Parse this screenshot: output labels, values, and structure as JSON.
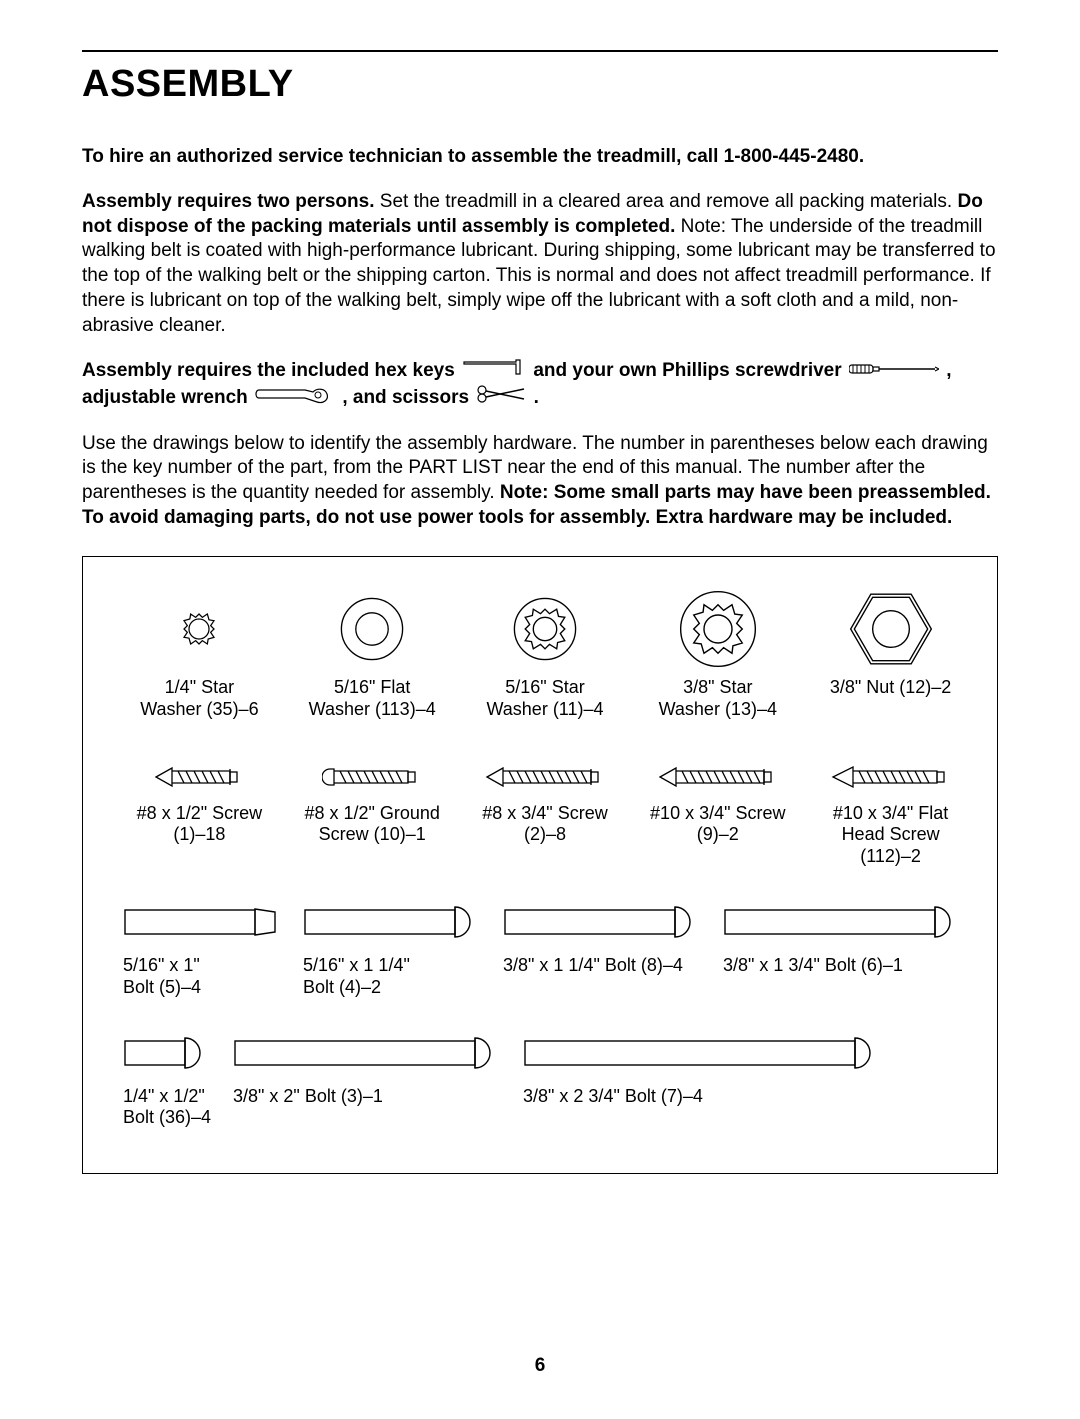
{
  "title": "ASSEMBLY",
  "intro_line": "To hire an authorized service technician to assemble the treadmill, call 1-800-445-2480.",
  "para2": {
    "bold1": "Assembly requires two persons.",
    "mid1": " Set the treadmill in a cleared area and remove all packing materials. ",
    "bold2": "Do not dispose of the packing materials until assembly is completed.",
    "mid2": " Note: The underside of the treadmill walking belt is coated with high-performance lubricant. During shipping, some lubricant may be transferred to the top of the walking belt or the shipping carton. This is normal and does not affect treadmill performance. If there is lubricant on top of the walking belt, simply wipe off the lubricant with a soft cloth and a mild, non-abrasive cleaner."
  },
  "tools": {
    "part1": "Assembly requires the included hex keys ",
    "part2": " and your own Phillips screwdriver ",
    "part3": " , adjustable wrench ",
    "part4": " , and scissors ",
    "part5": " ."
  },
  "para4": {
    "plain": "Use the drawings below to identify the assembly hardware. The number in parentheses below each drawing is the key number of the part, from the PART LIST near the end of this manual. The number after the parentheses is the quantity needed for assembly. ",
    "bold": "Note: Some small parts may have been preassembled. To avoid damaging parts, do not use power tools for assembly. Extra hardware may be included."
  },
  "hardware": {
    "row1": [
      {
        "l1": "1/4\" Star",
        "l2": "Washer (35)–6",
        "type": "star-small"
      },
      {
        "l1": "5/16\" Flat",
        "l2": "Washer (113)–4",
        "type": "flat-washer"
      },
      {
        "l1": "5/16\" Star",
        "l2": "Washer (11)–4",
        "type": "star-med"
      },
      {
        "l1": "3/8\" Star",
        "l2": "Washer (13)–4",
        "type": "star-large"
      },
      {
        "l1": "3/8\" Nut (12)–2",
        "l2": "",
        "type": "hex-nut"
      }
    ],
    "row2": [
      {
        "l1": "#8 x 1/2\" Screw",
        "l2": "(1)–18"
      },
      {
        "l1": "#8 x 1/2\" Ground",
        "l2": "Screw (10)–1"
      },
      {
        "l1": "#8 x 3/4\" Screw",
        "l2": "(2)–8"
      },
      {
        "l1": "#10 x 3/4\" Screw",
        "l2": "(9)–2"
      },
      {
        "l1": "#10 x 3/4\" Flat",
        "l2": "Head Screw (112)–2"
      }
    ]
  },
  "bolts_row1": [
    {
      "l1": "5/16\" x 1\"",
      "l2": "Bolt (5)–4",
      "len": 130,
      "head": "flat"
    },
    {
      "l1": "5/16\" x 1 1/4\"",
      "l2": "Bolt (4)–2",
      "len": 150,
      "head": "round"
    },
    {
      "l1": "3/8\" x 1 1/4\" Bolt (8)–4",
      "l2": "",
      "len": 170,
      "head": "round"
    },
    {
      "l1": "3/8\" x 1 3/4\" Bolt (6)–1",
      "l2": "",
      "len": 210,
      "head": "round"
    }
  ],
  "bolts_row2": [
    {
      "l1": "1/4\" x 1/2\"",
      "l2": "Bolt (36)–4",
      "len": 60,
      "head": "round"
    },
    {
      "l1": "3/8\" x 2\" Bolt (3)–1",
      "l2": "",
      "len": 240,
      "head": "round"
    },
    {
      "l1": "3/8\" x 2 3/4\" Bolt (7)–4",
      "l2": "",
      "len": 330,
      "head": "round"
    }
  ],
  "page_number": "6"
}
